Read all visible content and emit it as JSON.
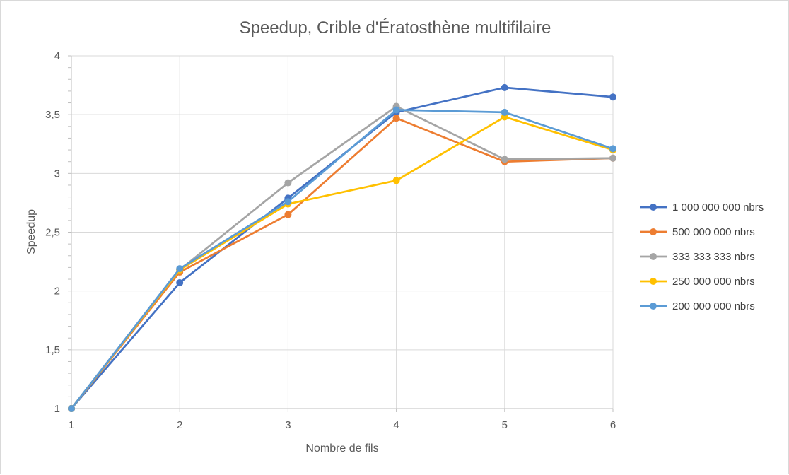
{
  "chart_data": {
    "type": "line",
    "title": "Speedup, Crible d'Ératosthène multifilaire",
    "xlabel": "Nombre de fils",
    "ylabel": "Speedup",
    "x": [
      1,
      2,
      3,
      4,
      5,
      6
    ],
    "x_tick_labels": [
      "1",
      "2",
      "3",
      "4",
      "5",
      "6"
    ],
    "ylim": [
      1,
      4
    ],
    "y_ticks": [
      1,
      1.5,
      2,
      2.5,
      3,
      3.5,
      4
    ],
    "y_tick_labels": [
      "1",
      "1,5",
      "2",
      "2,5",
      "3",
      "3,5",
      "4"
    ],
    "grid": true,
    "legend_position": "right",
    "series": [
      {
        "name": "1 000 000 000 nbrs",
        "color": "#4472c4",
        "values": [
          1.0,
          2.07,
          2.79,
          3.52,
          3.73,
          3.65
        ]
      },
      {
        "name": "500 000 000 nbrs",
        "color": "#ed7d31",
        "values": [
          1.0,
          2.16,
          2.65,
          3.47,
          3.1,
          3.13
        ]
      },
      {
        "name": "333 333 333 nbrs",
        "color": "#a5a5a5",
        "values": [
          1.0,
          2.18,
          2.92,
          3.57,
          3.12,
          3.13
        ]
      },
      {
        "name": "250 000 000 nbrs",
        "color": "#ffc000",
        "values": [
          1.0,
          2.18,
          2.74,
          2.94,
          3.48,
          3.2
        ]
      },
      {
        "name": "200 000 000 nbrs",
        "color": "#5b9bd5",
        "values": [
          1.0,
          2.19,
          2.76,
          3.54,
          3.52,
          3.21
        ]
      }
    ]
  }
}
